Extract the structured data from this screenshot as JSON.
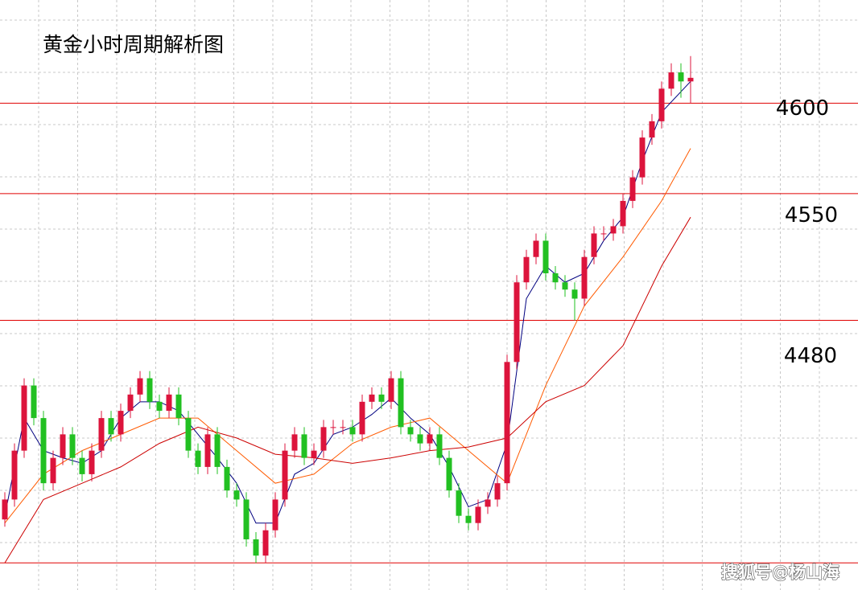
{
  "chart_data": {
    "type": "candlestick",
    "title": "黄金小时周期解析图",
    "watermark": "搜狐号@杨山海",
    "ylim": [
      4331,
      4657
    ],
    "hlines": [
      4600,
      4550,
      4480,
      4346
    ],
    "hline_color": "#e00000",
    "up_color": "#dc143c",
    "down_color": "#22c022",
    "open": [
      4370,
      4381,
      4408,
      4444,
      4426,
      4390,
      4404,
      4417,
      4404,
      4395,
      4408,
      4426,
      4417,
      4430,
      4439,
      4448,
      4435,
      4430,
      4439,
      4426,
      4408,
      4399,
      4417,
      4399,
      4386,
      4381,
      4359,
      4350,
      4364,
      4381,
      4408,
      4417,
      4404,
      4408,
      4421,
      4421,
      4421,
      4417,
      4435,
      4439,
      4435,
      4448,
      4421,
      4417,
      4412,
      4417,
      4404,
      4386,
      4372,
      4368,
      4377,
      4381,
      4390,
      4457,
      4501,
      4515,
      4524,
      4506,
      4501,
      4497,
      4492,
      4515,
      4528,
      4528,
      4532,
      4546,
      4559,
      4581,
      4590,
      4608,
      4617,
      4612
    ],
    "high": [
      4385,
      4412,
      4448,
      4448,
      4430,
      4408,
      4421,
      4421,
      4408,
      4412,
      4430,
      4430,
      4434,
      4443,
      4452,
      4452,
      4439,
      4443,
      4443,
      4430,
      4412,
      4421,
      4421,
      4403,
      4390,
      4385,
      4363,
      4368,
      4385,
      4412,
      4421,
      4421,
      4412,
      4425,
      4425,
      4425,
      4425,
      4439,
      4443,
      4443,
      4452,
      4452,
      4425,
      4421,
      4421,
      4421,
      4408,
      4390,
      4376,
      4381,
      4385,
      4394,
      4461,
      4505,
      4519,
      4528,
      4528,
      4510,
      4505,
      4501,
      4519,
      4532,
      4532,
      4536,
      4550,
      4563,
      4585,
      4594,
      4612,
      4622,
      4622,
      4626
    ],
    "low": [
      4366,
      4377,
      4404,
      4422,
      4386,
      4386,
      4400,
      4400,
      4391,
      4391,
      4404,
      4413,
      4413,
      4426,
      4435,
      4431,
      4426,
      4426,
      4422,
      4404,
      4395,
      4395,
      4395,
      4382,
      4377,
      4355,
      4346,
      4346,
      4360,
      4377,
      4404,
      4400,
      4400,
      4404,
      4417,
      4417,
      4413,
      4413,
      4431,
      4431,
      4431,
      4417,
      4413,
      4408,
      4408,
      4400,
      4382,
      4368,
      4364,
      4364,
      4373,
      4377,
      4386,
      4453,
      4497,
      4511,
      4502,
      4497,
      4493,
      4480,
      4488,
      4511,
      4524,
      4524,
      4528,
      4542,
      4555,
      4577,
      4586,
      4604,
      4603,
      4600
    ],
    "close": [
      4381,
      4408,
      4444,
      4426,
      4390,
      4404,
      4417,
      4404,
      4395,
      4408,
      4426,
      4417,
      4430,
      4439,
      4448,
      4435,
      4430,
      4439,
      4426,
      4408,
      4399,
      4417,
      4399,
      4386,
      4381,
      4359,
      4350,
      4364,
      4381,
      4408,
      4417,
      4404,
      4408,
      4421,
      4421,
      4421,
      4417,
      4435,
      4439,
      4435,
      4448,
      4421,
      4417,
      4412,
      4417,
      4404,
      4386,
      4372,
      4368,
      4377,
      4381,
      4390,
      4457,
      4501,
      4515,
      4524,
      4506,
      4501,
      4497,
      4492,
      4515,
      4528,
      4528,
      4532,
      4546,
      4559,
      4581,
      4590,
      4608,
      4617,
      4612,
      4614
    ],
    "series": [
      {
        "color": "#000080",
        "x": [
          0,
          2,
          4,
          6,
          8,
          10,
          12,
          14,
          16,
          18,
          20,
          22,
          24,
          26,
          28,
          30,
          32,
          34,
          36,
          38,
          40,
          42,
          44,
          46,
          48,
          50,
          52,
          54,
          56,
          58,
          60,
          62,
          64,
          66,
          68,
          71
        ],
        "values": [
          4372,
          4426,
          4408,
          4404,
          4401,
          4408,
          4426,
          4435,
          4435,
          4430,
          4417,
          4404,
          4390,
          4368,
          4368,
          4395,
          4401,
          4417,
          4421,
          4428,
          4437,
          4426,
          4417,
          4399,
          4377,
          4381,
          4412,
          4492,
          4510,
          4501,
          4506,
          4524,
          4537,
          4568,
          4595,
          4612
        ]
      },
      {
        "color": "#ff5a00",
        "x": [
          0,
          4,
          8,
          12,
          16,
          20,
          24,
          28,
          32,
          36,
          40,
          44,
          48,
          52,
          56,
          60,
          64,
          68,
          71
        ],
        "values": [
          4368,
          4395,
          4408,
          4417,
          4426,
          4426,
          4408,
          4390,
          4395,
          4412,
          4421,
          4426,
          4408,
          4390,
          4444,
          4488,
          4515,
          4546,
          4575
        ]
      },
      {
        "color": "#cc0000",
        "x": [
          0,
          4,
          8,
          12,
          16,
          20,
          24,
          28,
          32,
          36,
          40,
          44,
          48,
          52,
          56,
          60,
          64,
          68,
          71
        ],
        "values": [
          4346,
          4381,
          4390,
          4399,
          4412,
          4421,
          4415,
          4406,
          4404,
          4401,
          4404,
          4408,
          4410,
          4415,
          4435,
          4444,
          4466,
          4510,
          4537
        ]
      }
    ]
  }
}
